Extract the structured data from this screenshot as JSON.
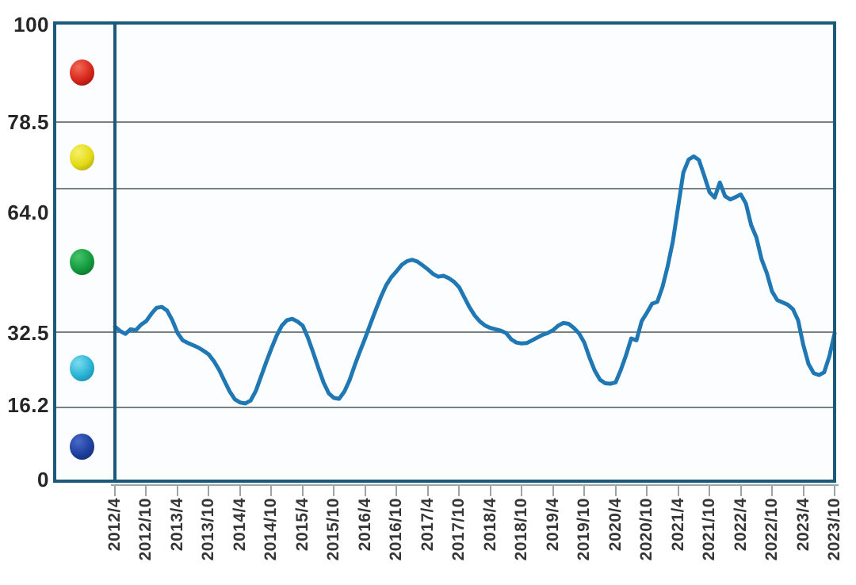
{
  "chart_data": {
    "type": "line",
    "title": "",
    "grid": "horizontal-only",
    "plot_background": "#fbfdfe",
    "frame_color": "#1b5a7a",
    "gridline_color": "#5d6b6d",
    "y_axis": {
      "range": [
        0,
        100
      ],
      "tick_labels": [
        "100",
        "78.5",
        "64.0",
        "32.5",
        "16.2",
        "0"
      ],
      "tick_values": [
        100,
        78.5,
        64.0,
        32.5,
        16.2,
        0
      ],
      "gridline_values": [
        78.5,
        64.0,
        32.5,
        16.2
      ]
    },
    "x_axis": {
      "tick_labels": [
        "2012/4",
        "2012/10",
        "2013/4",
        "2013/10",
        "2014/4",
        "2014/10",
        "2015/4",
        "2015/10",
        "2016/4",
        "2016/10",
        "2017/4",
        "2017/10",
        "2018/4",
        "2018/10",
        "2019/4",
        "2019/10",
        "2020/4",
        "2020/10",
        "2021/4",
        "2021/10",
        "2022/4",
        "2022/10",
        "2023/4",
        "2023/10"
      ],
      "tick_interval": "6 months"
    },
    "series": [
      {
        "name": "index-line",
        "color": "#1f77b4",
        "start": "2012/4",
        "frequency": "monthly",
        "values": [
          33.8,
          32.8,
          32.2,
          33.2,
          33.0,
          34.2,
          35.0,
          36.6,
          37.9,
          38.1,
          37.3,
          35.2,
          32.4,
          30.8,
          30.2,
          29.7,
          29.2,
          28.5,
          27.7,
          26.2,
          24.3,
          21.9,
          19.6,
          17.9,
          17.2,
          17.0,
          17.6,
          19.7,
          22.8,
          26.0,
          29.0,
          31.8,
          34.0,
          35.2,
          35.5,
          34.9,
          34.0,
          31.4,
          28.2,
          24.8,
          21.6,
          19.2,
          18.2,
          18.0,
          19.6,
          22.1,
          25.4,
          28.4,
          31.3,
          34.4,
          37.4,
          40.3,
          42.8,
          44.6,
          45.9,
          47.3,
          48.1,
          48.4,
          48.0,
          47.2,
          46.3,
          45.3,
          44.7,
          44.9,
          44.4,
          43.6,
          42.4,
          40.2,
          38.0,
          36.2,
          34.9,
          34.0,
          33.5,
          33.2,
          32.9,
          32.4,
          31.0,
          30.3,
          30.1,
          30.2,
          30.8,
          31.4,
          32.0,
          32.4,
          33.0,
          34.0,
          34.6,
          34.4,
          33.5,
          32.3,
          30.3,
          27.0,
          24.2,
          22.2,
          21.4,
          21.3,
          21.6,
          24.3,
          27.5,
          31.2,
          30.8,
          35.0,
          36.8,
          38.8,
          39.2,
          42.5,
          47.0,
          52.5,
          60.0,
          67.5,
          70.3,
          71.0,
          70.2,
          66.8,
          63.2,
          62.0,
          65.3,
          62.3,
          61.6,
          62.1,
          62.7,
          60.7,
          56.0,
          53.3,
          48.5,
          45.5,
          41.5,
          39.6,
          39.1,
          38.6,
          37.6,
          35.2,
          29.8,
          25.6,
          23.6,
          23.2,
          23.8,
          27.3,
          32.3
        ]
      }
    ],
    "zone_indicators": [
      {
        "name": "red",
        "band": "78.5-100",
        "color": "#d6251a",
        "light": "#f26a58",
        "dark": "#8e100a"
      },
      {
        "name": "yellow",
        "band": "64.0-78.5",
        "color": "#e4da16",
        "light": "#f6f06a",
        "dark": "#a09a0e"
      },
      {
        "name": "green",
        "band": "32.5-64.0",
        "color": "#12993c",
        "light": "#44c46c",
        "dark": "#0a6326"
      },
      {
        "name": "cyan",
        "band": "16.2-32.5",
        "color": "#29b2d4",
        "light": "#7cdcf0",
        "dark": "#15809f"
      },
      {
        "name": "navy",
        "band": "0-16.2",
        "color": "#1d3f9e",
        "light": "#4a68c8",
        "dark": "#122868"
      }
    ],
    "legend_position": "left-strip"
  }
}
